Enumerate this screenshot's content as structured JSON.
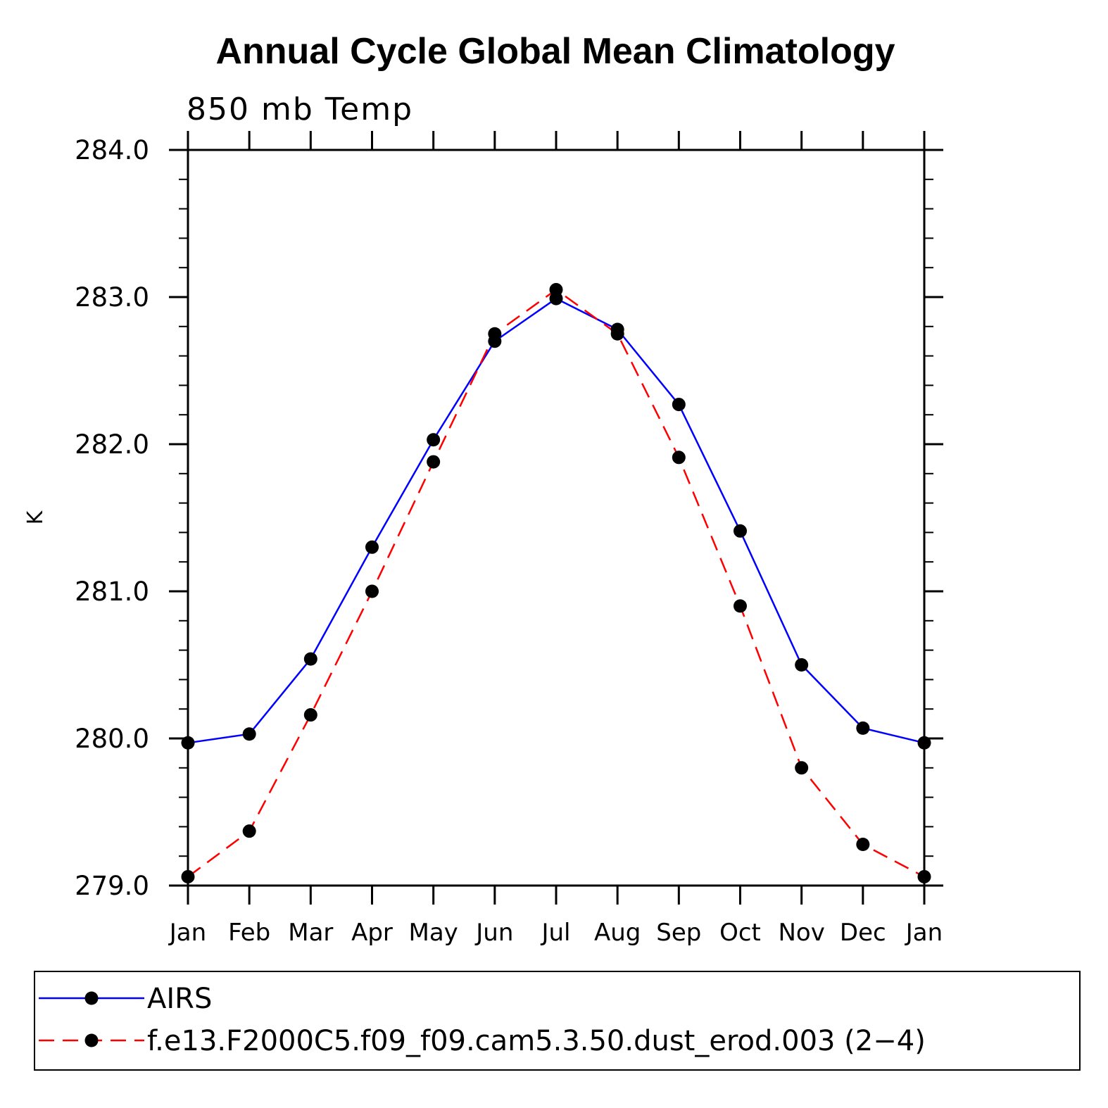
{
  "chart_data": {
    "type": "line",
    "title": "Annual Cycle Global Mean Climatology",
    "subtitle": "850 mb Temp",
    "xlabel": "",
    "ylabel": "K",
    "categories": [
      "Jan",
      "Feb",
      "Mar",
      "Apr",
      "May",
      "Jun",
      "Jul",
      "Aug",
      "Sep",
      "Oct",
      "Nov",
      "Dec",
      "Jan"
    ],
    "ylim": [
      279.0,
      284.0
    ],
    "yticks": [
      "279.0",
      "280.0",
      "281.0",
      "282.0",
      "283.0",
      "284.0"
    ],
    "grid": false,
    "legend_position": "bottom",
    "series": [
      {
        "name": "AIRS",
        "color": "#0000ff",
        "line_style": "solid",
        "values": [
          279.97,
          280.03,
          280.54,
          281.3,
          282.03,
          282.7,
          282.99,
          282.78,
          282.27,
          281.41,
          280.5,
          280.07,
          279.97
        ]
      },
      {
        "name": "f.e13.F2000C5.f09_f09.cam5.3.50.dust_erod.003 (2−4)",
        "color": "#ff0000",
        "line_style": "dashed",
        "values": [
          279.06,
          279.37,
          280.16,
          281.0,
          281.88,
          282.75,
          283.05,
          282.75,
          281.91,
          280.9,
          279.8,
          279.28,
          279.06
        ]
      }
    ]
  }
}
